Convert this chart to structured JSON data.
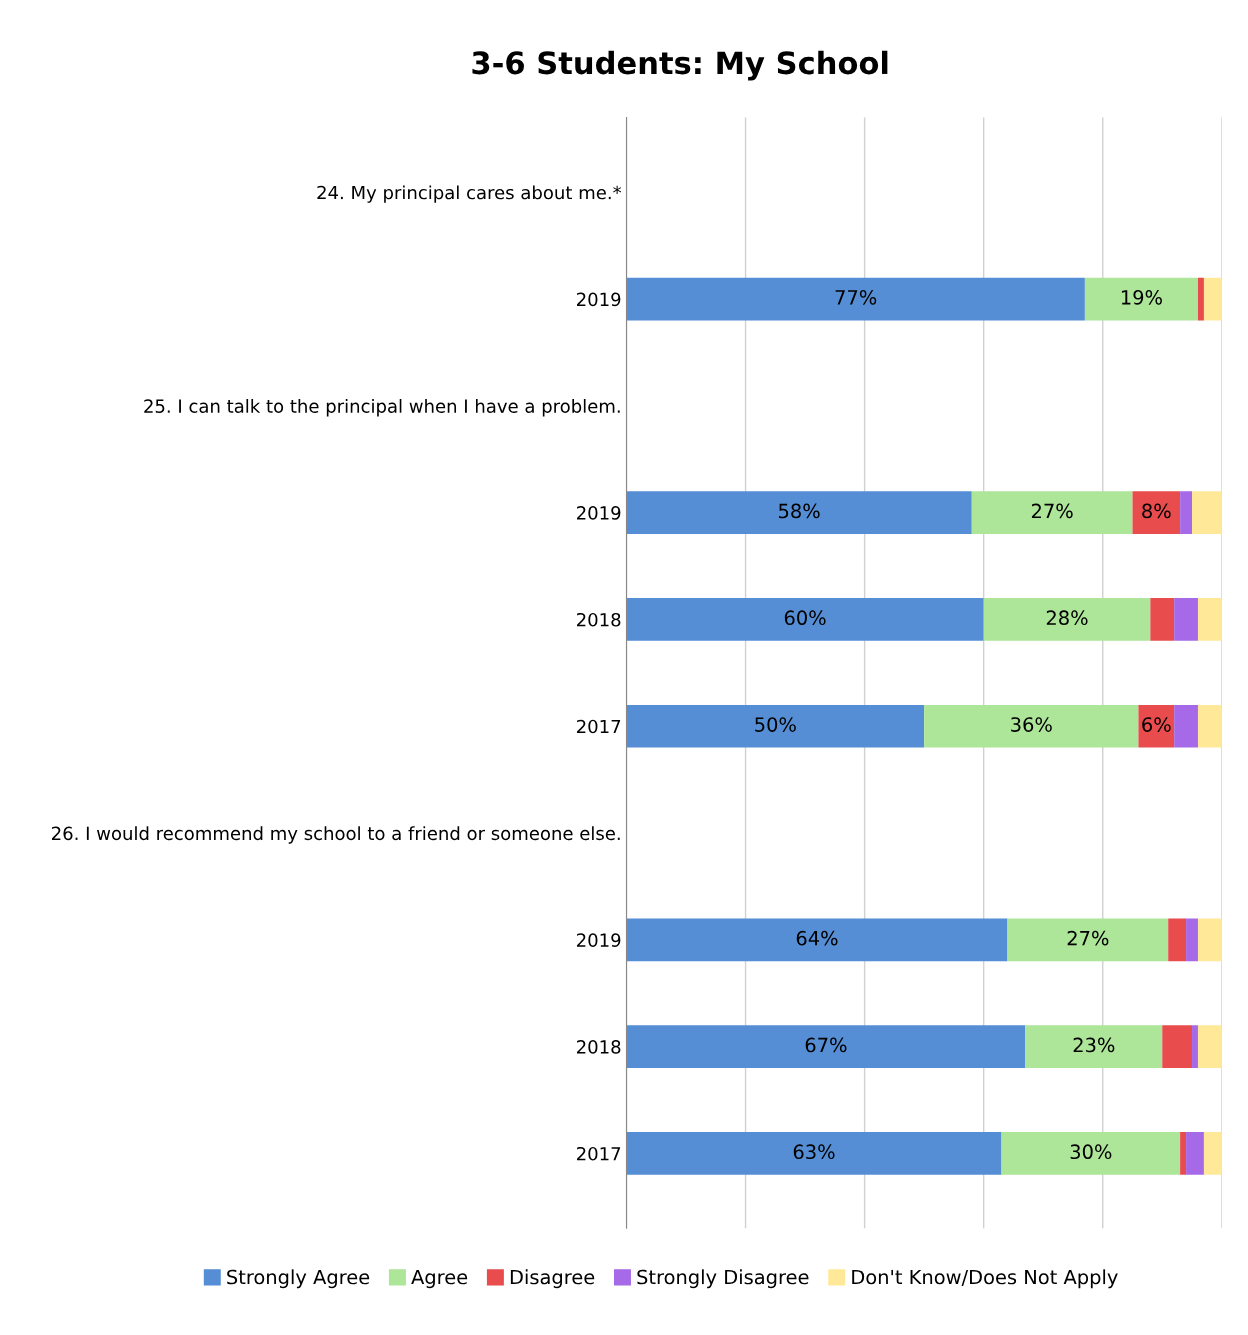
{
  "chart_data": {
    "type": "bar",
    "orientation": "horizontal",
    "stacked": true,
    "title": "3-6 Students: My School",
    "categories": [
      "24. My principal cares about me.*",
      "2019",
      "25. I can talk to the principal when I have a problem.",
      "2019",
      "2018",
      "2017",
      "26. I would recommend my school to a friend or someone else.",
      "2019",
      "2018",
      "2017"
    ],
    "series": [
      {
        "name": "Strongly Agree",
        "color": "#558ed5",
        "values": [
          null,
          77,
          null,
          58,
          60,
          50,
          null,
          64,
          67,
          63
        ],
        "value_labels": [
          null,
          "77%",
          null,
          "58%",
          "60%",
          "50%",
          null,
          "64%",
          "67%",
          "63%"
        ]
      },
      {
        "name": "Agree",
        "color": "#ade599",
        "values": [
          null,
          19,
          null,
          27,
          28,
          36,
          null,
          27,
          23,
          30
        ],
        "value_labels": [
          null,
          "19%",
          null,
          "27%",
          "28%",
          "36%",
          null,
          "27%",
          "23%",
          "30%"
        ]
      },
      {
        "name": "Disagree",
        "color": "#e84c4c",
        "values": [
          null,
          1,
          null,
          8,
          4,
          6,
          null,
          3,
          5,
          1
        ],
        "value_labels": [
          null,
          null,
          null,
          "8%",
          null,
          "6%",
          null,
          null,
          null,
          null
        ]
      },
      {
        "name": "Strongly Disagree",
        "color": "#a66ae8",
        "values": [
          null,
          0,
          null,
          2,
          4,
          4,
          null,
          2,
          1,
          3
        ]
      },
      {
        "name": "Don't Know/Does Not Apply",
        "color": "#ffe999",
        "values": [
          null,
          3,
          null,
          5,
          4,
          4,
          null,
          4,
          4,
          3
        ]
      }
    ],
    "xlim": [
      0,
      100
    ],
    "xticks": [
      {
        "value": 0,
        "label": null
      },
      {
        "value": 20,
        "label": null
      },
      {
        "value": 40,
        "label": null
      },
      {
        "value": 60,
        "label": null
      },
      {
        "value": 80,
        "label": null
      },
      {
        "value": 100,
        "label": null
      }
    ],
    "grid": "x",
    "legend": "bottom"
  }
}
